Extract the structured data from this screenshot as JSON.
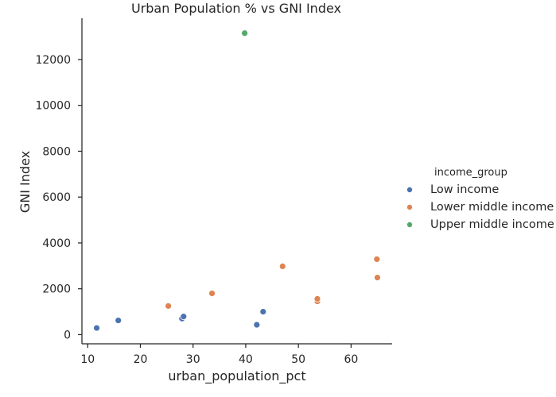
{
  "chart_data": {
    "type": "scatter",
    "title": "Urban Population % vs GNI Index",
    "xlabel": "urban_population_pct",
    "ylabel": "GNI Index",
    "xlim": [
      8.9,
      67.8
    ],
    "ylim": [
      -400,
      13800
    ],
    "xticks": [
      "10",
      "20",
      "30",
      "40",
      "50",
      "60"
    ],
    "yticks": [
      "0",
      "2000",
      "4000",
      "6000",
      "8000",
      "10000",
      "12000"
    ],
    "grid": false,
    "legend": {
      "title": "income_group",
      "placement": "right"
    },
    "series": [
      {
        "name": "Low income",
        "color": "#4c72b0",
        "points": [
          [
            11.7,
            290
          ],
          [
            15.8,
            620
          ],
          [
            27.9,
            700
          ],
          [
            28.2,
            790
          ],
          [
            42.1,
            430
          ],
          [
            43.3,
            1000
          ]
        ]
      },
      {
        "name": "Lower middle income",
        "color": "#dd8452",
        "points": [
          [
            25.3,
            1250
          ],
          [
            33.6,
            1800
          ],
          [
            47.0,
            2980
          ],
          [
            53.6,
            1450
          ],
          [
            53.6,
            1560
          ],
          [
            64.9,
            3290
          ],
          [
            65.0,
            2490
          ]
        ]
      },
      {
        "name": "Upper middle income",
        "color": "#55a868",
        "points": [
          [
            39.8,
            13150
          ]
        ]
      }
    ]
  }
}
